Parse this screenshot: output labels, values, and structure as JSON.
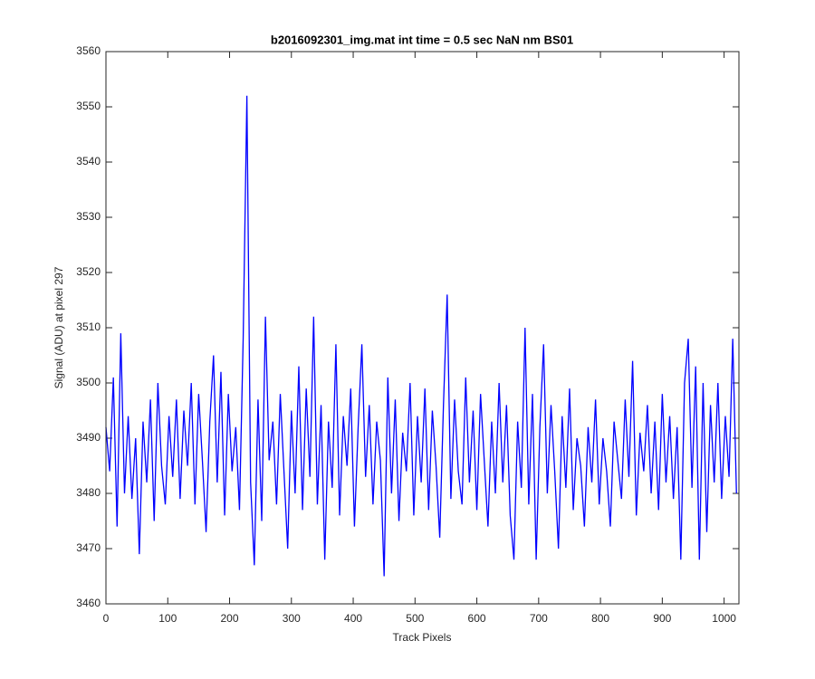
{
  "chart_data": {
    "type": "line",
    "title": "b2016092301_img.mat int time = 0.5 sec  NaN nm BS01",
    "x_label": "Track Pixels",
    "y_label": "Signal (ADU) at pixel 297",
    "color": "#0000ff",
    "xlim": [
      0,
      1024
    ],
    "ylim": [
      3460,
      3560
    ],
    "xticks": [
      0,
      100,
      200,
      300,
      400,
      500,
      600,
      700,
      800,
      900,
      1000
    ],
    "yticks": [
      3460,
      3470,
      3480,
      3490,
      3500,
      3510,
      3520,
      3530,
      3540,
      3550,
      3560
    ],
    "grid": false,
    "x": [
      0,
      6,
      12,
      18,
      24,
      30,
      36,
      42,
      48,
      54,
      60,
      66,
      72,
      78,
      84,
      90,
      96,
      102,
      108,
      114,
      120,
      126,
      132,
      138,
      144,
      150,
      156,
      162,
      168,
      174,
      180,
      186,
      192,
      198,
      204,
      210,
      216,
      222,
      228,
      234,
      240,
      246,
      252,
      258,
      264,
      270,
      276,
      282,
      288,
      294,
      300,
      306,
      312,
      318,
      324,
      330,
      336,
      342,
      348,
      354,
      360,
      366,
      372,
      378,
      384,
      390,
      396,
      402,
      408,
      414,
      420,
      426,
      432,
      438,
      444,
      450,
      456,
      462,
      468,
      474,
      480,
      486,
      492,
      498,
      504,
      510,
      516,
      522,
      528,
      534,
      540,
      546,
      552,
      558,
      564,
      570,
      576,
      582,
      588,
      594,
      600,
      606,
      612,
      618,
      624,
      630,
      636,
      642,
      648,
      654,
      660,
      666,
      672,
      678,
      684,
      690,
      696,
      702,
      708,
      714,
      720,
      726,
      732,
      738,
      744,
      750,
      756,
      762,
      768,
      774,
      780,
      786,
      792,
      798,
      804,
      810,
      816,
      822,
      828,
      834,
      840,
      846,
      852,
      858,
      864,
      870,
      876,
      882,
      888,
      894,
      900,
      906,
      912,
      918,
      924,
      930,
      936,
      942,
      948,
      954,
      960,
      966,
      972,
      978,
      984,
      990,
      996,
      1002,
      1008,
      1014,
      1020
    ],
    "values": [
      3492,
      3484,
      3501,
      3474,
      3509,
      3480,
      3494,
      3479,
      3490,
      3469,
      3493,
      3482,
      3497,
      3475,
      3500,
      3485,
      3478,
      3494,
      3483,
      3497,
      3479,
      3495,
      3485,
      3500,
      3478,
      3498,
      3486,
      3473,
      3493,
      3505,
      3482,
      3502,
      3476,
      3498,
      3484,
      3492,
      3477,
      3508,
      3552,
      3482,
      3467,
      3497,
      3475,
      3512,
      3486,
      3493,
      3478,
      3498,
      3484,
      3470,
      3495,
      3480,
      3503,
      3477,
      3499,
      3483,
      3512,
      3478,
      3496,
      3468,
      3493,
      3481,
      3507,
      3476,
      3494,
      3485,
      3499,
      3474,
      3492,
      3507,
      3483,
      3496,
      3478,
      3493,
      3486,
      3465,
      3501,
      3480,
      3497,
      3475,
      3491,
      3484,
      3500,
      3476,
      3494,
      3482,
      3499,
      3477,
      3495,
      3485,
      3472,
      3496,
      3516,
      3479,
      3497,
      3484,
      3478,
      3501,
      3482,
      3495,
      3477,
      3498,
      3486,
      3474,
      3493,
      3480,
      3500,
      3482,
      3496,
      3476,
      3468,
      3493,
      3481,
      3510,
      3478,
      3498,
      3468,
      3492,
      3507,
      3480,
      3496,
      3484,
      3470,
      3494,
      3481,
      3499,
      3477,
      3490,
      3485,
      3474,
      3492,
      3482,
      3497,
      3478,
      3490,
      3484,
      3474,
      3493,
      3486,
      3479,
      3497,
      3483,
      3504,
      3476,
      3491,
      3484,
      3496,
      3480,
      3493,
      3477,
      3498,
      3482,
      3494,
      3479,
      3492,
      3468,
      3500,
      3508,
      3481,
      3503,
      3468,
      3500,
      3473,
      3496,
      3482,
      3500,
      3479,
      3494,
      3483,
      3508,
      3480
    ]
  }
}
